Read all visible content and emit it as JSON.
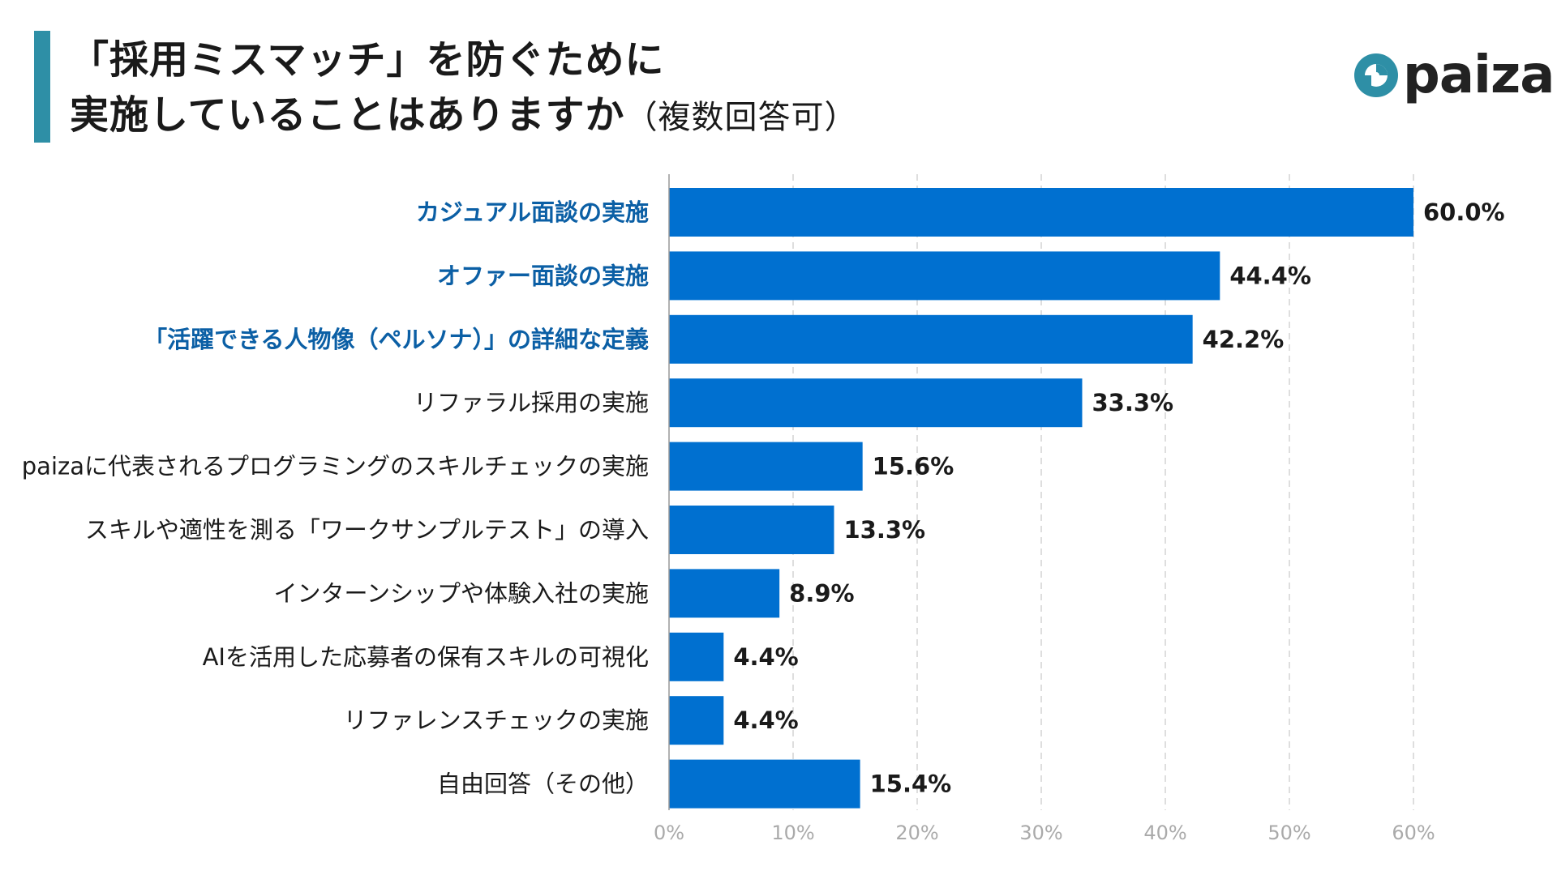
{
  "header": {
    "title_line1": "「採用ミスマッチ」を防ぐために",
    "title_line2": "実施していることはありますか",
    "title_suffix": "（複数回答可）",
    "title_bar_color": "#2e8fa6"
  },
  "logo": {
    "text": "paiza",
    "mark_icon": "paiza-logo-icon",
    "mark_color": "#2e8fa6"
  },
  "colors": {
    "bar": "#0070d0",
    "highlight_label": "#0b5fa5"
  },
  "chart_data": {
    "type": "bar",
    "orientation": "horizontal",
    "title": "「採用ミスマッチ」を防ぐために実施していることはありますか（複数回答可）",
    "categories": [
      "カジュアル面談の実施",
      "オファー面談の実施",
      "「活躍できる人物像（ペルソナ）」の詳細な定義",
      "リファラル採用の実施",
      "paizaに代表されるプログラミングのスキルチェックの実施",
      "スキルや適性を測る「ワークサンプルテスト」の導入",
      "インターンシップや体験入社の実施",
      "AIを活用した応募者の保有スキルの可視化",
      "リファレンスチェックの実施",
      "自由回答（その他）"
    ],
    "values": [
      60.0,
      44.4,
      42.2,
      33.3,
      15.6,
      13.3,
      8.9,
      4.4,
      4.4,
      15.4
    ],
    "value_labels": [
      "60.0%",
      "44.4%",
      "42.2%",
      "33.3%",
      "15.6%",
      "13.3%",
      "8.9%",
      "4.4%",
      "4.4%",
      "15.4%"
    ],
    "highlighted": [
      true,
      true,
      true,
      false,
      false,
      false,
      false,
      false,
      false,
      false
    ],
    "xlim": [
      0,
      60
    ],
    "ticks": [
      0,
      10,
      20,
      30,
      40,
      50,
      60
    ],
    "tick_labels": [
      "0%",
      "10%",
      "20%",
      "30%",
      "40%",
      "50%",
      "60%"
    ],
    "grid": "vertical-dashed",
    "xlabel": "",
    "ylabel": ""
  }
}
